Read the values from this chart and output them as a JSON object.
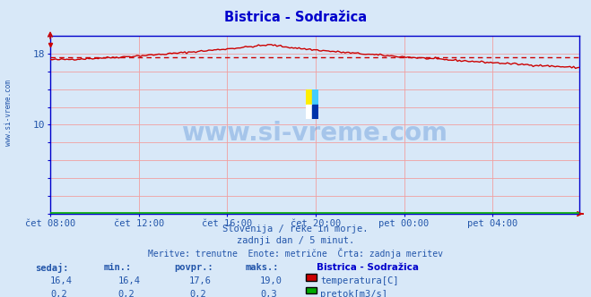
{
  "title": "Bistrica - Sodražica",
  "bg_color": "#d8e8f8",
  "plot_bg_color": "#d8e8f8",
  "grid_color": "#f0a0a0",
  "temp_color": "#cc0000",
  "flow_color": "#00aa00",
  "avg_line_color": "#cc0000",
  "x_labels": [
    "čet 08:00",
    "čet 12:00",
    "čet 16:00",
    "čet 20:00",
    "pet 00:00",
    "pet 04:00"
  ],
  "x_ticks": [
    0,
    48,
    96,
    144,
    192,
    240
  ],
  "total_points": 288,
  "ylim": [
    0,
    20
  ],
  "yticks": [
    0,
    2,
    4,
    6,
    8,
    10,
    12,
    14,
    16,
    18,
    20
  ],
  "ylabel_shown": [
    10,
    18
  ],
  "temp_min": 16.4,
  "temp_max": 19.0,
  "temp_avg": 17.6,
  "temp_current": 16.4,
  "flow_min": 0.2,
  "flow_max": 0.3,
  "flow_avg": 0.2,
  "flow_current": 0.2,
  "station": "Bistrica - Sodražica",
  "subtitle1": "Slovenija / reke in morje.",
  "subtitle2": "zadnji dan / 5 minut.",
  "subtitle3": "Meritve: trenutne  Enote: metrične  Črta: zadnja meritev",
  "watermark": "www.si-vreme.com",
  "label_color": "#2255aa",
  "title_color": "#0000cc",
  "axes_color": "#0000bb",
  "spine_color": "#0000cc",
  "logo_colors": [
    "#ffee00",
    "#44ccff",
    "#ffffff",
    "#0033aa"
  ],
  "side_watermark": "www.si-vreme.com"
}
